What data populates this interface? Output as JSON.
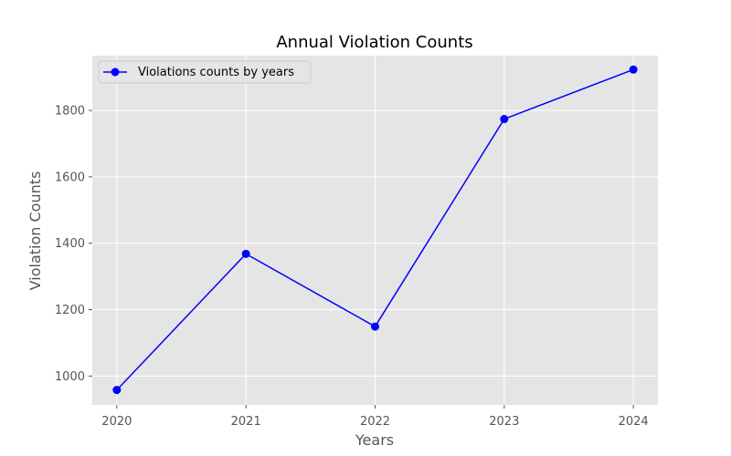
{
  "chart_data": {
    "type": "line",
    "title": "Annual Violation Counts",
    "xlabel": "Years",
    "ylabel": "Violation Counts",
    "x": [
      "2020",
      "2021",
      "2022",
      "2023",
      "2024"
    ],
    "series": [
      {
        "name": "Violations counts by years",
        "values": [
          958,
          1368,
          1149,
          1774,
          1923
        ],
        "color": "#0000ff",
        "marker": "circle"
      }
    ],
    "xlim": [
      "2019.81",
      "2024.19"
    ],
    "ylim": [
      913,
      1965
    ],
    "y_ticks": [
      1000,
      1200,
      1400,
      1600,
      1800
    ],
    "x_ticks": [
      "2020",
      "2021",
      "2022",
      "2023",
      "2024"
    ],
    "grid": true,
    "legend_position": "top-left",
    "background": "#e5e5e5",
    "gridline_color": "#ffffff"
  }
}
